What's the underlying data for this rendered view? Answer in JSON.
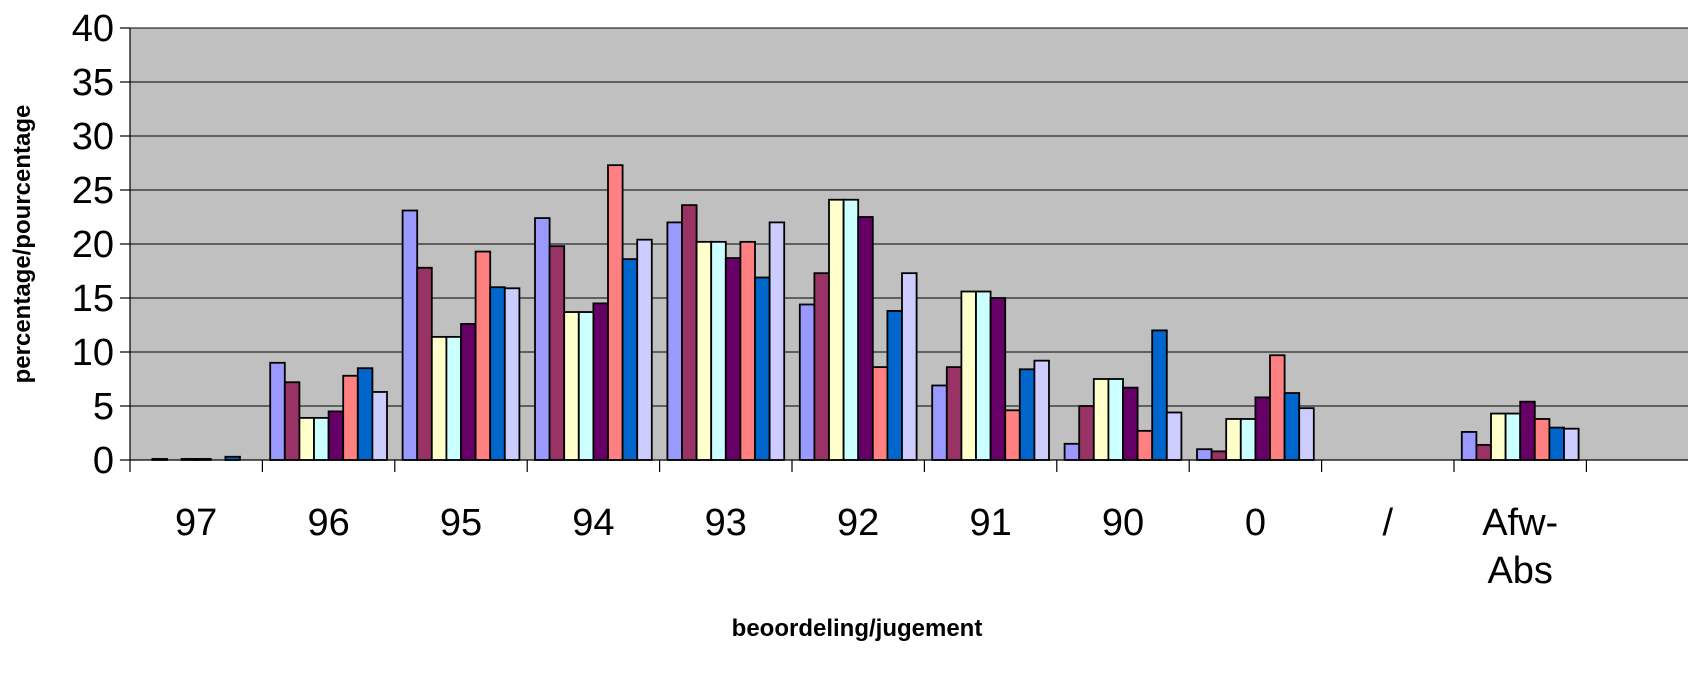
{
  "chart_data": {
    "type": "bar",
    "xlabel": "beoordeling/jugement",
    "ylabel": "percentage/pourcentage",
    "ylim": [
      0,
      40
    ],
    "yticks": [
      0,
      5,
      10,
      15,
      20,
      25,
      30,
      35,
      40
    ],
    "grid": true,
    "plot_background": "#c0c0c0",
    "categories": [
      "97",
      "96",
      "95",
      "94",
      "93",
      "92",
      "91",
      "90",
      "0",
      "/",
      "Afw-\nAbs"
    ],
    "series": [
      {
        "color": "#9999ff",
        "values": [
          0.0,
          9.0,
          23.1,
          22.4,
          22.0,
          14.4,
          6.9,
          1.5,
          1.0,
          0.0,
          2.6
        ]
      },
      {
        "color": "#993366",
        "values": [
          0.1,
          7.2,
          17.8,
          19.8,
          23.6,
          17.3,
          8.6,
          5.0,
          0.8,
          0.0,
          1.4
        ]
      },
      {
        "color": "#ffffcc",
        "values": [
          0.0,
          3.9,
          11.4,
          13.7,
          20.2,
          24.1,
          15.6,
          7.5,
          3.8,
          0.0,
          4.3
        ]
      },
      {
        "color": "#ccffff",
        "values": [
          0.1,
          3.9,
          11.4,
          13.7,
          20.2,
          24.1,
          15.6,
          7.5,
          3.8,
          0.0,
          4.3
        ]
      },
      {
        "color": "#660066",
        "values": [
          0.1,
          4.5,
          12.6,
          14.5,
          18.7,
          22.5,
          15.0,
          6.7,
          5.8,
          0.0,
          5.4
        ]
      },
      {
        "color": "#ff8080",
        "values": [
          0.0,
          7.8,
          19.3,
          27.3,
          20.2,
          8.6,
          4.6,
          2.7,
          9.7,
          0.0,
          3.8
        ]
      },
      {
        "color": "#0066cc",
        "values": [
          0.3,
          8.5,
          16.0,
          18.6,
          16.9,
          13.8,
          8.4,
          12.0,
          6.2,
          0.0,
          3.0
        ]
      },
      {
        "color": "#ccccff",
        "values": [
          0.0,
          6.3,
          15.9,
          20.4,
          22.0,
          17.3,
          9.2,
          4.4,
          4.8,
          0.0,
          2.9
        ]
      }
    ]
  }
}
